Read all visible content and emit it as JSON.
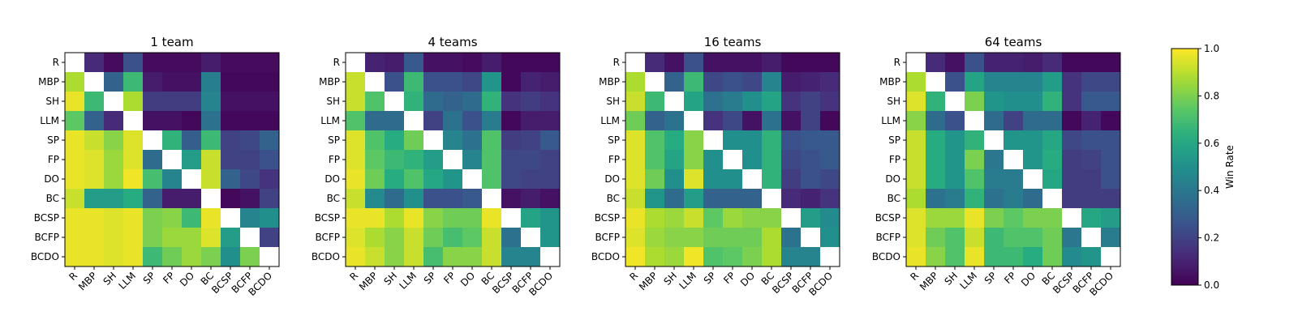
{
  "chart_data": {
    "type": "heatmap",
    "labels": [
      "R",
      "MBP",
      "SH",
      "LLM",
      "SP",
      "FP",
      "DO",
      "BC",
      "BCSP",
      "BCFP",
      "BCDO"
    ],
    "colorbar": {
      "label": "Win Rate",
      "range": [
        0.0,
        1.0
      ],
      "ticks": [
        "0.0",
        "0.2",
        "0.4",
        "0.6",
        "0.8",
        "1.0"
      ],
      "colormap": "viridis"
    },
    "diagonal": "blank",
    "panels": [
      {
        "title": "1 team",
        "matrix": [
          [
            null,
            0.12,
            0.03,
            0.25,
            0.03,
            0.03,
            0.03,
            0.08,
            0.03,
            0.03,
            0.03
          ],
          [
            0.88,
            null,
            0.32,
            0.68,
            0.08,
            0.05,
            0.05,
            0.43,
            0.02,
            0.02,
            0.02
          ],
          [
            0.97,
            0.68,
            null,
            0.88,
            0.18,
            0.18,
            0.18,
            0.45,
            0.05,
            0.05,
            0.05
          ],
          [
            0.75,
            0.32,
            0.12,
            null,
            0.05,
            0.05,
            0.02,
            0.38,
            0.02,
            0.02,
            0.02
          ],
          [
            0.97,
            0.92,
            0.82,
            0.95,
            null,
            0.65,
            0.3,
            0.68,
            0.2,
            0.22,
            0.32
          ],
          [
            0.97,
            0.95,
            0.85,
            0.95,
            0.35,
            null,
            0.55,
            0.92,
            0.2,
            0.2,
            0.25
          ],
          [
            0.97,
            0.95,
            0.85,
            0.98,
            0.7,
            0.45,
            null,
            0.92,
            0.32,
            0.22,
            0.15
          ],
          [
            0.92,
            0.55,
            0.55,
            0.62,
            0.32,
            0.08,
            0.08,
            null,
            0.02,
            0.05,
            0.2
          ],
          [
            0.97,
            0.97,
            0.95,
            0.97,
            0.8,
            0.82,
            0.68,
            0.97,
            null,
            0.45,
            0.5
          ],
          [
            0.97,
            0.97,
            0.95,
            0.97,
            0.8,
            0.85,
            0.85,
            0.95,
            0.55,
            null,
            0.2
          ],
          [
            0.97,
            0.97,
            0.95,
            0.97,
            0.68,
            0.78,
            0.85,
            0.8,
            0.5,
            0.8,
            null
          ]
        ]
      },
      {
        "title": "4 teams",
        "matrix": [
          [
            null,
            0.1,
            0.08,
            0.28,
            0.05,
            0.05,
            0.03,
            0.08,
            0.02,
            0.02,
            0.02
          ],
          [
            0.92,
            null,
            0.25,
            0.68,
            0.25,
            0.25,
            0.22,
            0.52,
            0.02,
            0.1,
            0.08
          ],
          [
            0.92,
            0.72,
            null,
            0.65,
            0.35,
            0.32,
            0.35,
            0.65,
            0.15,
            0.18,
            0.15
          ],
          [
            0.72,
            0.35,
            0.35,
            null,
            0.2,
            0.38,
            0.25,
            0.42,
            0.02,
            0.08,
            0.08
          ],
          [
            0.95,
            0.72,
            0.62,
            0.78,
            null,
            0.45,
            0.38,
            0.72,
            0.18,
            0.2,
            0.28
          ],
          [
            0.95,
            0.75,
            0.68,
            0.65,
            0.55,
            null,
            0.45,
            0.72,
            0.22,
            0.22,
            0.2
          ],
          [
            0.97,
            0.78,
            0.62,
            0.72,
            0.6,
            0.52,
            null,
            0.72,
            0.22,
            0.2,
            0.2
          ],
          [
            0.92,
            0.48,
            0.35,
            0.5,
            0.25,
            0.25,
            0.28,
            null,
            0.05,
            0.08,
            0.05
          ],
          [
            0.97,
            0.97,
            0.88,
            0.97,
            0.82,
            0.78,
            0.78,
            0.97,
            null,
            0.58,
            0.52
          ],
          [
            0.95,
            0.88,
            0.82,
            0.92,
            0.78,
            0.7,
            0.75,
            0.92,
            0.38,
            null,
            0.52
          ],
          [
            0.97,
            0.92,
            0.82,
            0.92,
            0.7,
            0.82,
            0.82,
            0.92,
            0.45,
            0.45,
            null
          ]
        ]
      },
      {
        "title": "16 teams",
        "matrix": [
          [
            null,
            0.12,
            0.05,
            0.25,
            0.05,
            0.05,
            0.05,
            0.08,
            0.02,
            0.02,
            0.02
          ],
          [
            0.88,
            null,
            0.32,
            0.68,
            0.22,
            0.25,
            0.22,
            0.45,
            0.08,
            0.1,
            0.12
          ],
          [
            0.92,
            0.68,
            null,
            0.58,
            0.38,
            0.42,
            0.5,
            0.58,
            0.15,
            0.2,
            0.15
          ],
          [
            0.78,
            0.32,
            0.38,
            null,
            0.15,
            0.22,
            0.05,
            0.38,
            0.05,
            0.2,
            0.02
          ],
          [
            0.95,
            0.72,
            0.62,
            0.82,
            null,
            0.5,
            0.5,
            0.65,
            0.25,
            0.28,
            0.28
          ],
          [
            0.95,
            0.72,
            0.58,
            0.82,
            0.5,
            null,
            0.5,
            0.65,
            0.22,
            0.25,
            0.28
          ],
          [
            0.95,
            0.78,
            0.5,
            0.95,
            0.5,
            0.5,
            null,
            0.65,
            0.18,
            0.25,
            0.22
          ],
          [
            0.92,
            0.52,
            0.35,
            0.55,
            0.32,
            0.32,
            0.32,
            null,
            0.12,
            0.1,
            0.15
          ],
          [
            0.97,
            0.88,
            0.85,
            0.92,
            0.75,
            0.85,
            0.82,
            0.82,
            null,
            0.55,
            0.48
          ],
          [
            0.95,
            0.85,
            0.82,
            0.82,
            0.78,
            0.78,
            0.78,
            0.88,
            0.38,
            null,
            0.5
          ],
          [
            0.98,
            0.88,
            0.85,
            0.98,
            0.72,
            0.75,
            0.8,
            0.88,
            0.45,
            0.45,
            null
          ]
        ]
      },
      {
        "title": "64 teams",
        "matrix": [
          [
            null,
            0.12,
            0.05,
            0.25,
            0.1,
            0.1,
            0.08,
            0.12,
            0.02,
            0.02,
            0.02
          ],
          [
            0.88,
            null,
            0.25,
            0.58,
            0.45,
            0.45,
            0.45,
            0.55,
            0.15,
            0.22,
            0.22
          ],
          [
            0.95,
            0.65,
            null,
            0.8,
            0.52,
            0.5,
            0.5,
            0.65,
            0.15,
            0.28,
            0.28
          ],
          [
            0.82,
            0.35,
            0.25,
            null,
            0.35,
            0.2,
            0.35,
            0.35,
            0.02,
            0.1,
            0.02
          ],
          [
            0.92,
            0.62,
            0.52,
            0.65,
            null,
            0.52,
            0.52,
            0.6,
            0.22,
            0.25,
            0.25
          ],
          [
            0.92,
            0.62,
            0.52,
            0.8,
            0.4,
            null,
            0.52,
            0.62,
            0.18,
            0.2,
            0.25
          ],
          [
            0.92,
            0.62,
            0.52,
            0.72,
            0.42,
            0.42,
            null,
            0.6,
            0.18,
            0.18,
            0.25
          ],
          [
            0.88,
            0.38,
            0.42,
            0.65,
            0.38,
            0.42,
            0.35,
            null,
            0.18,
            0.18,
            0.18
          ],
          [
            0.95,
            0.85,
            0.85,
            0.97,
            0.8,
            0.75,
            0.8,
            0.8,
            null,
            0.6,
            0.55
          ],
          [
            0.95,
            0.78,
            0.72,
            0.92,
            0.68,
            0.72,
            0.72,
            0.78,
            0.4,
            null,
            0.42
          ],
          [
            0.97,
            0.82,
            0.72,
            0.97,
            0.68,
            0.68,
            0.62,
            0.78,
            0.48,
            0.52,
            null
          ]
        ]
      }
    ]
  }
}
